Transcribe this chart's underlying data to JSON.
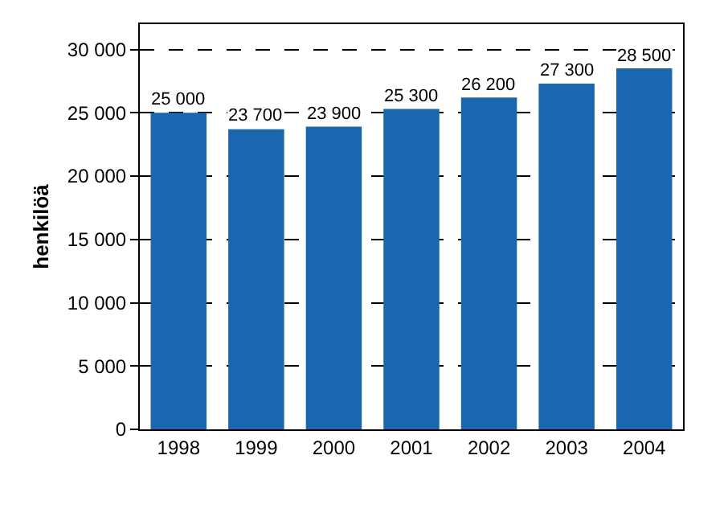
{
  "chart_data": {
    "type": "bar",
    "ylabel": "henkilöä",
    "categories": [
      "1998",
      "1999",
      "2000",
      "2001",
      "2002",
      "2003",
      "2004"
    ],
    "values": [
      25000,
      23700,
      23900,
      25300,
      26200,
      27300,
      28500
    ],
    "value_labels": [
      "25 000",
      "23 700",
      "23 900",
      "25 300",
      "26 200",
      "27 300",
      "28 500"
    ],
    "color": "#1a67b0",
    "ylim": [
      0,
      32000
    ],
    "yticks": [
      0,
      {
        "value": 5000,
        "label": "5 000"
      },
      {
        "value": 10000,
        "label": "10 000"
      },
      {
        "value": 15000,
        "label": "15 000"
      },
      {
        "value": 20000,
        "label": "20 000"
      },
      {
        "value": 25000,
        "label": "25 000"
      },
      {
        "value": 30000,
        "label": "30 000"
      }
    ],
    "grid": "y",
    "legend": false
  }
}
